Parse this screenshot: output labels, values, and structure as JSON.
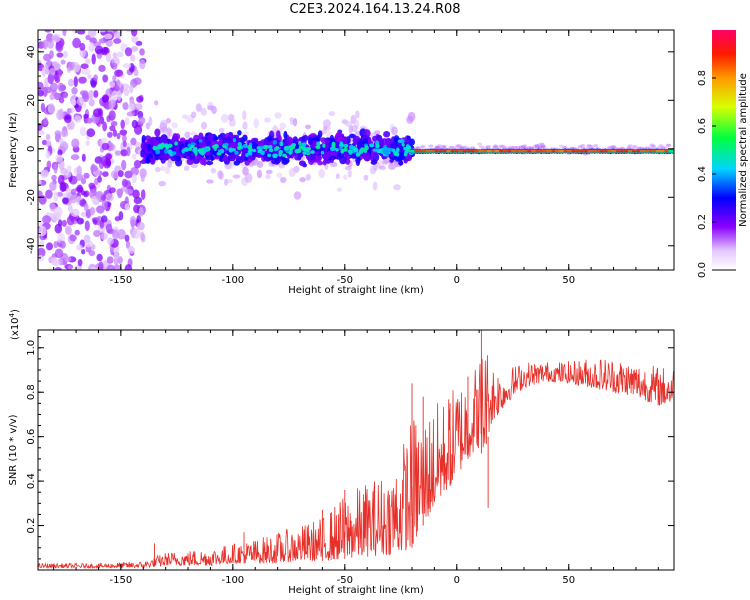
{
  "title": "C2E3.2024.164.13.24.R08",
  "colors": {
    "snr_line": "#e8302a",
    "axes": "#000000",
    "background": "#ffffff"
  },
  "chart_data": [
    {
      "type": "heatmap",
      "name": "spectrogram",
      "xlabel": "Height of straight line (km)",
      "ylabel": "Frequency (Hz)",
      "xlim": [
        -187,
        97
      ],
      "ylim": [
        -50,
        49
      ],
      "xticks": [
        -150,
        -100,
        -50,
        0,
        50
      ],
      "yticks": [
        -40,
        -20,
        0,
        20,
        40
      ],
      "colorbar": {
        "label": "Normalized spectral amplitude",
        "range": [
          0,
          1
        ],
        "ticks": [
          "0.0",
          "0.2",
          "0.4",
          "0.6",
          "0.8"
        ],
        "tick_values": [
          0.0,
          0.2,
          0.4,
          0.6,
          0.8
        ]
      },
      "regions": [
        {
          "x": [
            -187,
            -140
          ],
          "freq_spread": 50,
          "amplitude": 0.12
        },
        {
          "x": [
            -140,
            -20
          ],
          "freq_spread": 10,
          "amplitude": 0.3
        },
        {
          "x": [
            -20,
            97
          ],
          "freq_spread": 2,
          "amplitude": 0.85
        }
      ]
    },
    {
      "type": "line",
      "name": "snr",
      "xlabel": "Height of straight line (km)",
      "ylabel": "SNR (10 * v/v)",
      "scale_label": "(x10",
      "scale_exp": "4",
      "scale_close": ")",
      "xlim": [
        -187,
        97
      ],
      "ylim": [
        0.0,
        1.08
      ],
      "xticks": [
        -150,
        -100,
        -50,
        0,
        50
      ],
      "yticks": [
        0.2,
        0.4,
        0.6,
        0.8,
        1.0
      ],
      "yticklabels": [
        "0.2",
        "0.4",
        "0.6",
        "0.8",
        "1.0"
      ],
      "envelope": {
        "x": [
          -187,
          -160,
          -140,
          -130,
          -120,
          -110,
          -100,
          -90,
          -80,
          -70,
          -60,
          -50,
          -40,
          -30,
          -25,
          -20,
          -15,
          -10,
          -5,
          0,
          5,
          10,
          12,
          15,
          20,
          25,
          30,
          40,
          50,
          60,
          70,
          80,
          90,
          97
        ],
        "low": [
          0.01,
          0.01,
          0.01,
          0.02,
          0.02,
          0.02,
          0.03,
          0.03,
          0.03,
          0.04,
          0.04,
          0.05,
          0.06,
          0.07,
          0.08,
          0.1,
          0.2,
          0.28,
          0.35,
          0.42,
          0.5,
          0.55,
          0.5,
          0.65,
          0.72,
          0.78,
          0.82,
          0.85,
          0.84,
          0.82,
          0.8,
          0.78,
          0.74,
          0.75
        ],
        "high": [
          0.03,
          0.03,
          0.04,
          0.08,
          0.09,
          0.1,
          0.12,
          0.14,
          0.17,
          0.2,
          0.24,
          0.34,
          0.4,
          0.45,
          0.55,
          0.7,
          0.7,
          0.75,
          0.78,
          0.85,
          0.9,
          0.95,
          1.08,
          0.96,
          0.9,
          0.92,
          0.94,
          0.94,
          0.94,
          0.96,
          0.96,
          0.94,
          0.92,
          0.92
        ]
      },
      "spikes": [
        {
          "x": -135,
          "y": 0.12
        },
        {
          "x": -95,
          "y": 0.17
        },
        {
          "x": -60,
          "y": 0.27
        },
        {
          "x": -50,
          "y": 0.36
        },
        {
          "x": -20,
          "y": 0.84
        },
        {
          "x": -15,
          "y": 0.78
        },
        {
          "x": -3,
          "y": 0.75
        },
        {
          "x": 5,
          "y": 0.87
        },
        {
          "x": 11,
          "y": 1.08
        },
        {
          "x": 14,
          "y": 0.28
        }
      ]
    }
  ]
}
